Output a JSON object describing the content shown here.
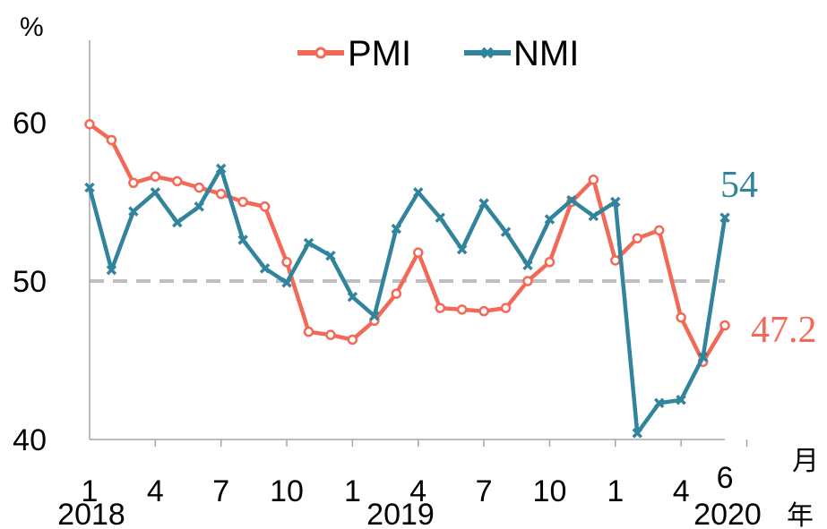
{
  "chart_data": {
    "type": "line",
    "y_unit": "%",
    "x_unit": "月",
    "year_unit": "年",
    "ylim": [
      40,
      60
    ],
    "y_ticks": [
      "40",
      "50",
      "60"
    ],
    "reference_line": {
      "value": 50,
      "style": "dashed",
      "color": "#bfbfbf"
    },
    "x_tick_labels": [
      "1",
      "4",
      "7",
      "10",
      "1",
      "4",
      "7",
      "10",
      "1",
      "4",
      "6"
    ],
    "year_labels": [
      "2018",
      "2019",
      "2020"
    ],
    "legend_position": "top",
    "series": [
      {
        "name": "PMI",
        "color": "#f26a57",
        "marker": "circle",
        "values": [
          59.9,
          58.9,
          56.2,
          56.6,
          56.3,
          55.9,
          55.5,
          55.0,
          54.7,
          51.2,
          46.8,
          46.6,
          46.3,
          47.5,
          49.2,
          51.8,
          48.3,
          48.2,
          48.1,
          48.3,
          50.0,
          51.2,
          55.0,
          56.4,
          51.3,
          52.7,
          53.2,
          47.7,
          44.9,
          47.2
        ],
        "end_label": "47.2"
      },
      {
        "name": "NMI",
        "color": "#31849b",
        "marker": "x",
        "values": [
          55.9,
          50.7,
          54.4,
          55.6,
          53.7,
          54.7,
          57.1,
          52.6,
          50.8,
          49.9,
          52.4,
          51.6,
          49.0,
          47.8,
          53.3,
          55.6,
          54.0,
          52.0,
          54.9,
          53.1,
          51.0,
          53.9,
          55.1,
          54.1,
          55.0,
          40.4,
          42.3,
          42.5,
          45.2,
          54.0
        ],
        "end_label": "54"
      }
    ]
  }
}
